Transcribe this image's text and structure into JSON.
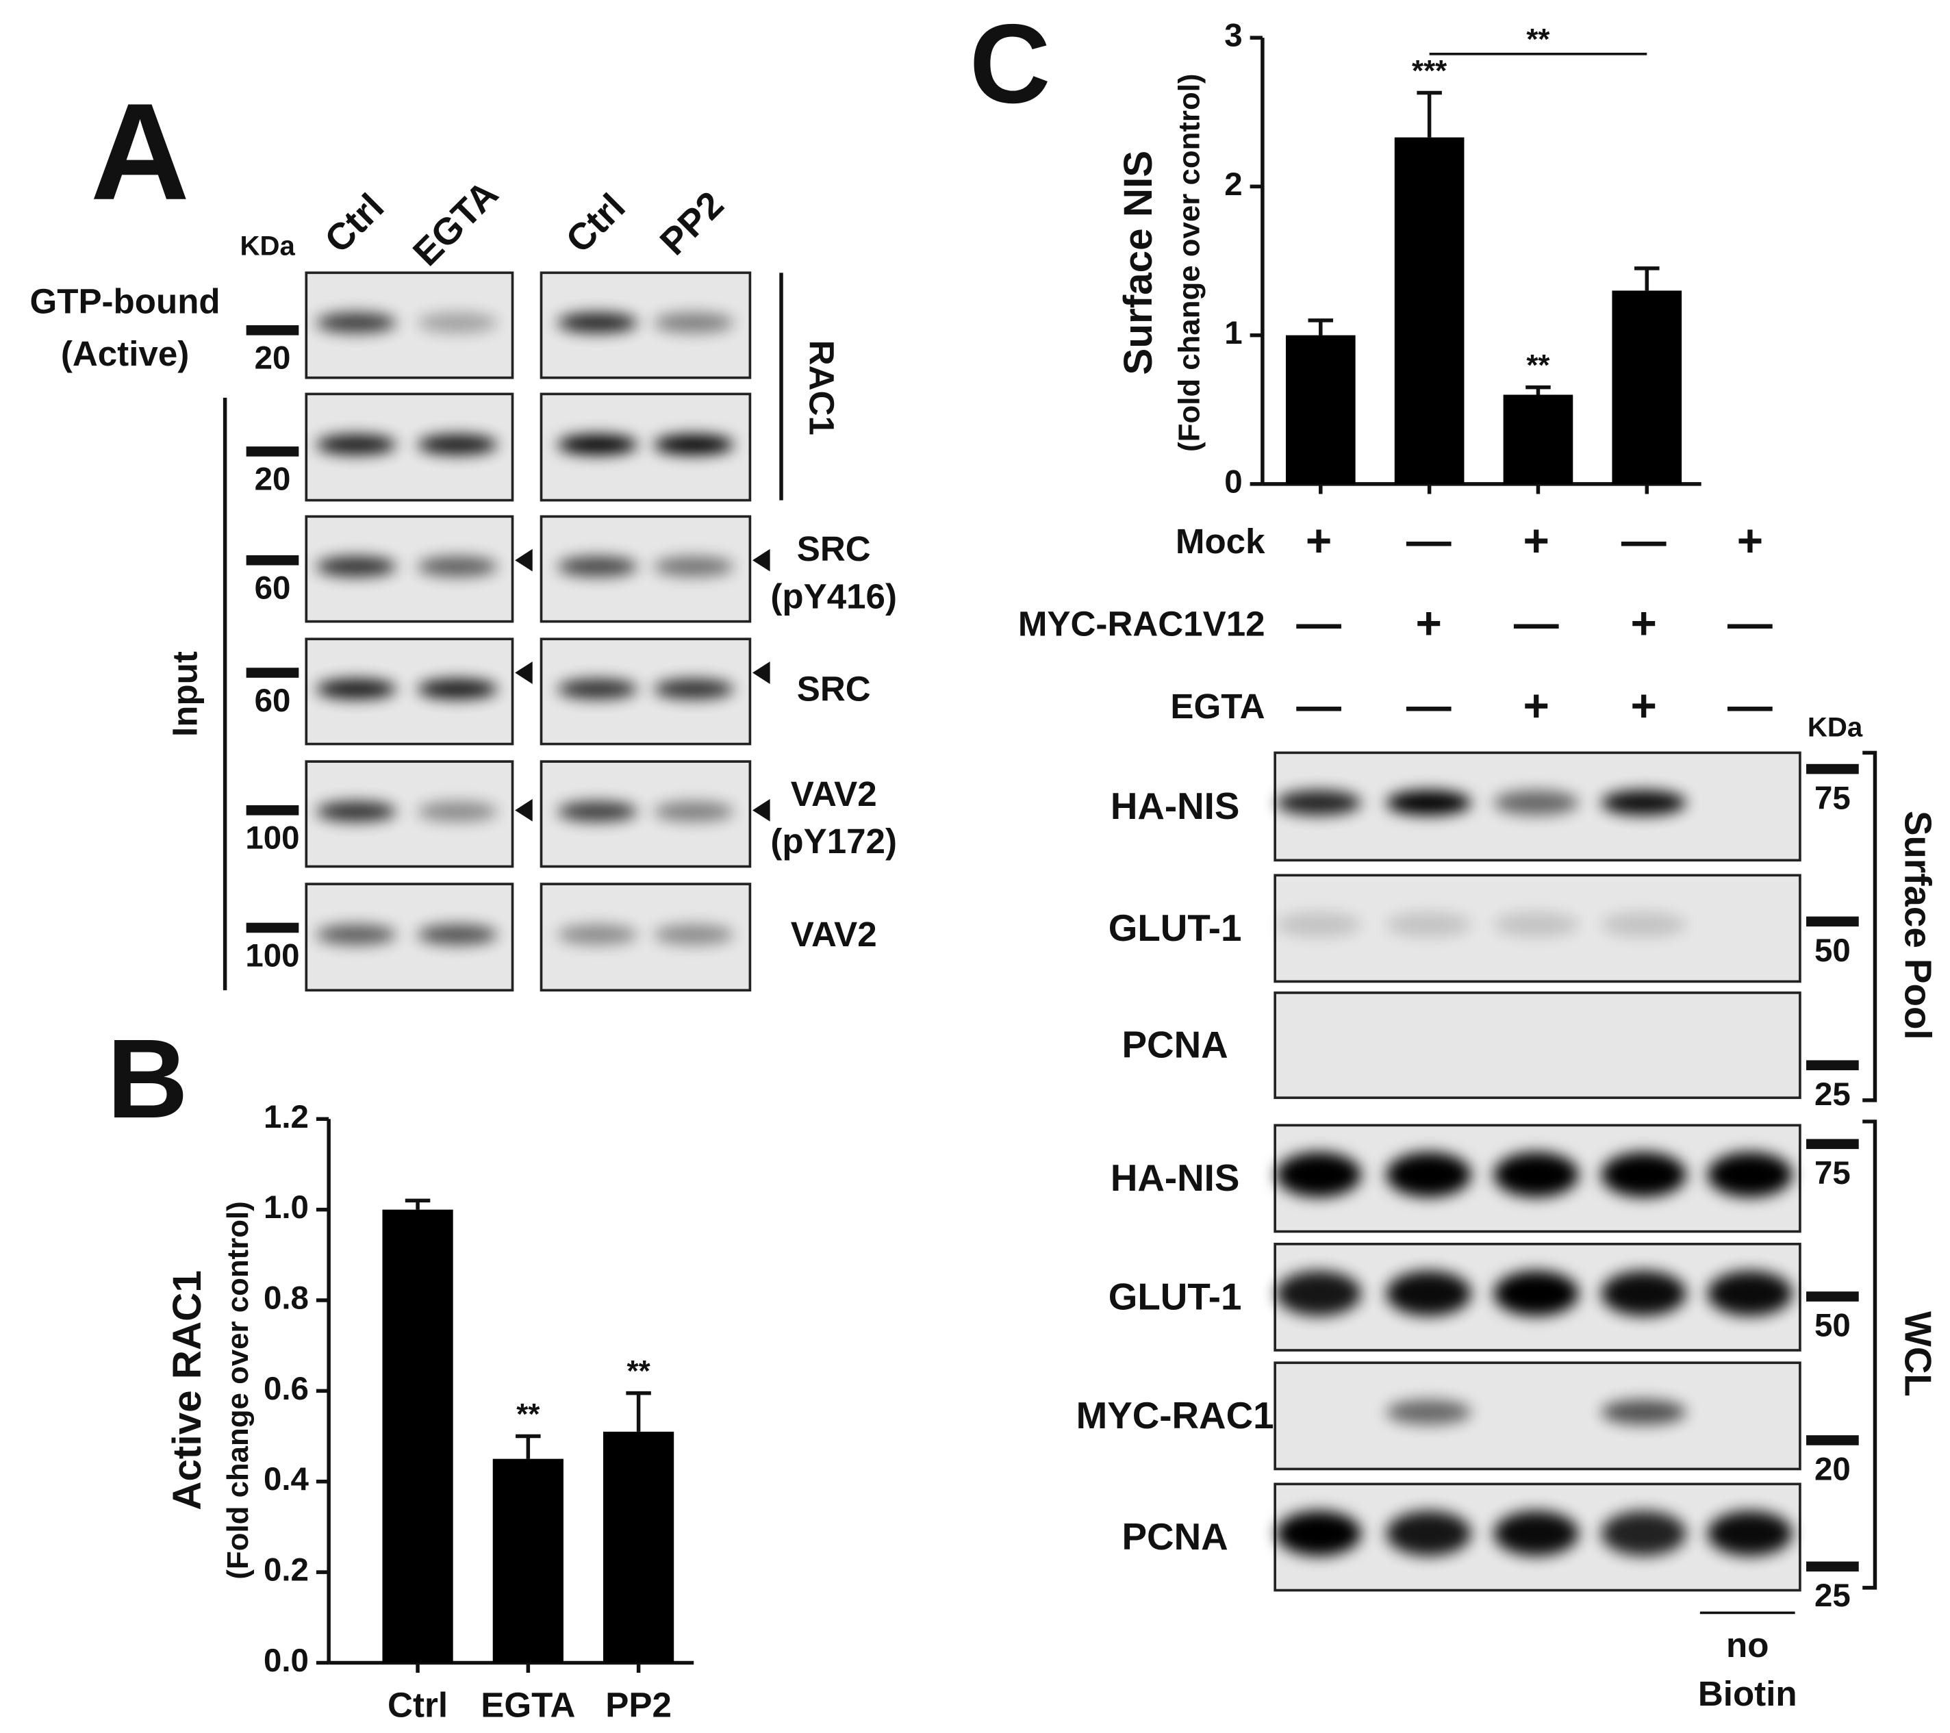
{
  "panel_a": {
    "label": "A",
    "kda_label": "KDa",
    "lanes": [
      "Ctrl",
      "EGTA",
      "Ctrl",
      "PP2"
    ],
    "gtp_label": [
      "GTP-bound",
      "(Active)"
    ],
    "input_label": "Input",
    "rac1_label": "RAC1",
    "rows": [
      {
        "marker": 20
      },
      {
        "marker": 20
      },
      {
        "marker": 60,
        "label": [
          "SRC",
          "(pY416)"
        ]
      },
      {
        "marker": 60,
        "label": [
          "SRC"
        ]
      },
      {
        "marker": 100,
        "label": [
          "VAV2",
          "(pY172)"
        ]
      },
      {
        "marker": 100,
        "label": [
          "VAV2"
        ]
      }
    ]
  },
  "panel_b": {
    "label": "B"
  },
  "panel_c": {
    "label": "C",
    "kda_label": "KDa",
    "conditions": [
      {
        "name": "Mock",
        "signs": [
          "+",
          "—",
          "+",
          "—",
          "+"
        ]
      },
      {
        "name": "MYC-RAC1V12",
        "signs": [
          "—",
          "+",
          "—",
          "+",
          "—"
        ]
      },
      {
        "name": "EGTA",
        "signs": [
          "—",
          "—",
          "+",
          "+",
          "—"
        ]
      }
    ],
    "rows": [
      {
        "label": "HA-NIS",
        "marker": 75
      },
      {
        "label": "GLUT-1",
        "marker": 50
      },
      {
        "label": "PCNA",
        "marker": 25
      },
      {
        "label": "HA-NIS",
        "marker": 75
      },
      {
        "label": "GLUT-1",
        "marker": 50
      },
      {
        "label": "MYC-RAC1",
        "marker": 20
      },
      {
        "label": "PCNA",
        "marker": 25
      }
    ],
    "groups": [
      "Surface Pool",
      "WCL"
    ],
    "no_biotin": [
      "no",
      "Biotin"
    ]
  },
  "chart_data": [
    {
      "type": "bar",
      "y_label": "Active RAC1",
      "y_sublabel": "(Fold change over control)",
      "categories": [
        "Ctrl",
        "EGTA",
        "PP2"
      ],
      "values": [
        1.0,
        0.45,
        0.51
      ],
      "errors": [
        0.02,
        0.05,
        0.085
      ],
      "significance": [
        null,
        "**",
        "**"
      ],
      "color": "#000000",
      "ylim": [
        0,
        1.2
      ],
      "yticks": [
        {
          "value": 0,
          "label": "0.0"
        },
        {
          "value": 0.2,
          "label": "0.2"
        },
        {
          "value": 0.4,
          "label": "0.4"
        },
        {
          "value": 0.6,
          "label": "0.6"
        },
        {
          "value": 0.8,
          "label": "0.8"
        },
        {
          "value": 1,
          "label": "1.0"
        },
        {
          "value": 1.2,
          "label": "1.2"
        }
      ]
    },
    {
      "type": "bar",
      "y_label": "Surface NIS",
      "y_sublabel": "(Fold change over control)",
      "categories": [
        null,
        null,
        null,
        null
      ],
      "values": [
        1.0,
        2.33,
        0.6,
        1.3
      ],
      "errors": [
        0.1,
        0.3,
        0.05,
        0.15
      ],
      "significance": [
        null,
        "***",
        "**",
        null
      ],
      "bracket_label": "**",
      "color": "#000000",
      "ylim": [
        0,
        3
      ],
      "yticks": [
        0,
        1,
        2,
        3
      ]
    }
  ]
}
